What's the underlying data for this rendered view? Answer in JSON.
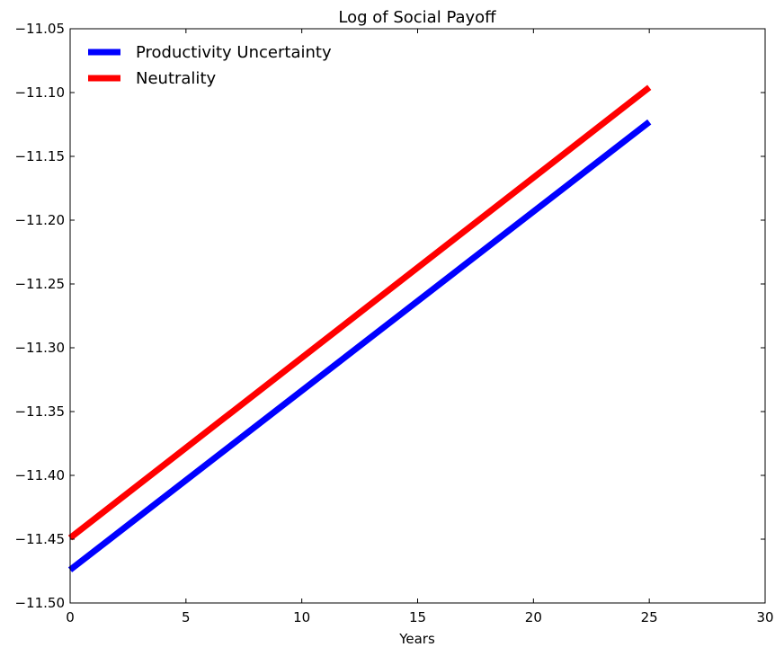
{
  "chart_data": {
    "type": "line",
    "title": "Log of Social Payoff",
    "xlabel": "Years",
    "ylabel": "",
    "xlim": [
      0,
      30
    ],
    "ylim": [
      -11.5,
      -11.05
    ],
    "xticks": [
      0,
      5,
      10,
      15,
      20,
      25,
      30
    ],
    "xtick_labels": [
      "0",
      "5",
      "10",
      "15",
      "20",
      "25",
      "30"
    ],
    "yticks": [
      -11.5,
      -11.45,
      -11.4,
      -11.35,
      -11.3,
      -11.25,
      -11.2,
      -11.15,
      -11.1,
      -11.05
    ],
    "ytick_labels": [
      "−11.50",
      "−11.45",
      "−11.40",
      "−11.35",
      "−11.30",
      "−11.25",
      "−11.20",
      "−11.15",
      "−11.10",
      "−11.05"
    ],
    "grid": false,
    "legend_position": "top-left",
    "series": [
      {
        "name": "Productivity Uncertainty",
        "color": "#0000ff",
        "x": [
          0,
          25
        ],
        "y": [
          -11.474,
          -11.123
        ]
      },
      {
        "name": "Neutrality",
        "color": "#ff0000",
        "x": [
          0,
          25
        ],
        "y": [
          -11.449,
          -11.096
        ]
      }
    ]
  }
}
